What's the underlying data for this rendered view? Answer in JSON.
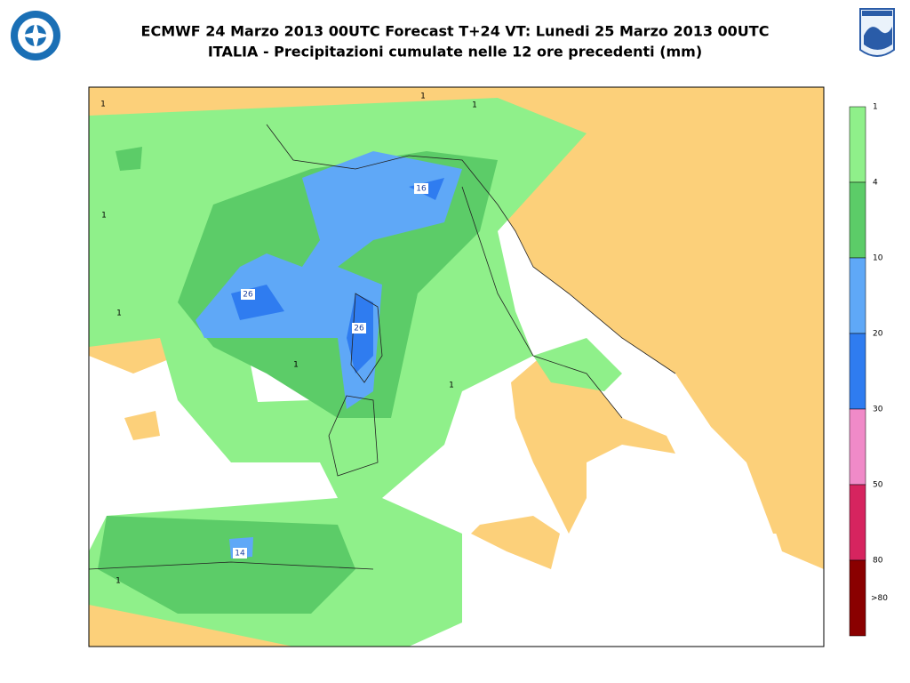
{
  "header": {
    "title_line1": "ECMWF 24 Marzo 2013 00UTC Forecast T+24 VT: Lunedi 25 Marzo 2013 00UTC",
    "title_line2": "ITALIA - Precipitazioni cumulate nelle 12 ore precedenti (mm)"
  },
  "legend": {
    "labels": [
      1,
      4,
      10,
      20,
      30,
      50,
      80,
      ">80"
    ],
    "colors": [
      "#8ff08a",
      "#5ccc68",
      "#5fa8f7",
      "#2f7cf0",
      "#f08ac8",
      "#d6245f",
      "#8a0000"
    ]
  },
  "map": {
    "labels": [
      "1",
      "1",
      "1",
      "1",
      "1",
      "1",
      "1",
      "26",
      "26",
      "16",
      "14",
      "1"
    ]
  }
}
